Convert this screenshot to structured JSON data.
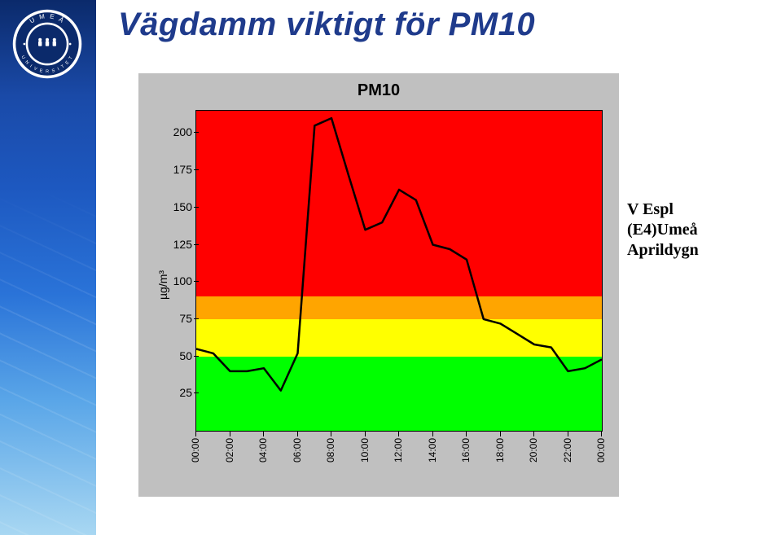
{
  "title": "Vägdamm viktigt för PM10",
  "title_color": "#1f3b8c",
  "logo": {
    "ring_color": "#ffffff",
    "inner_color": "#0b2a6b",
    "text_top": "U M E Å",
    "text_bottom": "U N I V E R S I T E T",
    "dots_color": "#ffffff"
  },
  "caption": {
    "line1": "V Espl",
    "line2": "(E4)Umeå",
    "line3": "Aprildygn"
  },
  "chart": {
    "type": "line",
    "title": "PM10",
    "background_color": "#c0c0c0",
    "plot_background": "#ffffff",
    "ylim": [
      0,
      215
    ],
    "ylabel": "µg/m³",
    "yticks": [
      25,
      50,
      75,
      100,
      125,
      150,
      175,
      200
    ],
    "bands": [
      {
        "from": 0,
        "to": 50,
        "color": "#00ff00"
      },
      {
        "from": 50,
        "to": 75,
        "color": "#ffff00"
      },
      {
        "from": 75,
        "to": 90,
        "color": "#ffa500"
      },
      {
        "from": 90,
        "to": 215,
        "color": "#ff0000"
      }
    ],
    "line_color": "#000000",
    "line_width": 2.5,
    "x_labels": [
      "00:00",
      "02:00",
      "04:00",
      "06:00",
      "08:00",
      "10:00",
      "12:00",
      "14:00",
      "16:00",
      "18:00",
      "20:00",
      "22:00",
      "00:00"
    ],
    "series": [
      {
        "x": 0,
        "y": 55
      },
      {
        "x": 1,
        "y": 52
      },
      {
        "x": 2,
        "y": 40
      },
      {
        "x": 3,
        "y": 40
      },
      {
        "x": 4,
        "y": 42
      },
      {
        "x": 5,
        "y": 27
      },
      {
        "x": 6,
        "y": 52
      },
      {
        "x": 7,
        "y": 205
      },
      {
        "x": 8,
        "y": 210
      },
      {
        "x": 9,
        "y": 172
      },
      {
        "x": 10,
        "y": 135
      },
      {
        "x": 11,
        "y": 140
      },
      {
        "x": 12,
        "y": 162
      },
      {
        "x": 13,
        "y": 155
      },
      {
        "x": 14,
        "y": 125
      },
      {
        "x": 15,
        "y": 122
      },
      {
        "x": 16,
        "y": 115
      },
      {
        "x": 17,
        "y": 75
      },
      {
        "x": 18,
        "y": 72
      },
      {
        "x": 19,
        "y": 65
      },
      {
        "x": 20,
        "y": 58
      },
      {
        "x": 21,
        "y": 56
      },
      {
        "x": 22,
        "y": 40
      },
      {
        "x": 23,
        "y": 42
      },
      {
        "x": 24,
        "y": 48
      }
    ]
  }
}
